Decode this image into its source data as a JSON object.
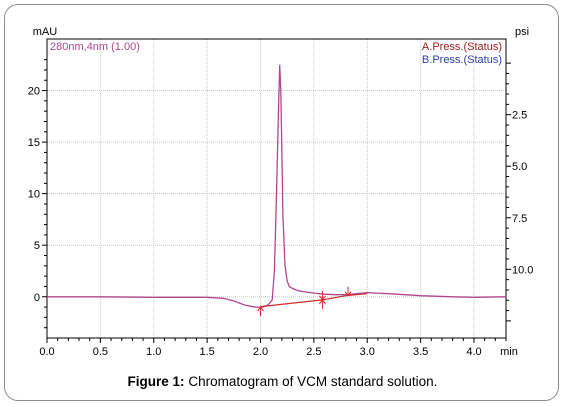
{
  "chart_data": {
    "type": "line",
    "left_unit": "mAU",
    "right_unit": "psi",
    "x_unit": "min",
    "xlim": [
      0.0,
      4.3
    ],
    "ylim": [
      -4,
      25
    ],
    "right_ylim": [
      13.33,
      -1.17
    ],
    "x_ticks": [
      "0.0",
      "0.5",
      "1.0",
      "1.5",
      "2.0",
      "2.5",
      "3.0",
      "3.5",
      "4.0"
    ],
    "y_ticks": [
      "0",
      "5",
      "10",
      "15",
      "20"
    ],
    "right_ticks": [
      "2.5",
      "5.0",
      "7.5",
      "10.0"
    ],
    "grid": true,
    "legend_placement": "top-right",
    "series": [
      {
        "name": "280nm,4nm (1.00)",
        "color": "#b0478f",
        "x": [
          0.0,
          0.5,
          1.0,
          1.5,
          1.65,
          1.75,
          1.85,
          1.95,
          2.02,
          2.07,
          2.11,
          2.13,
          2.15,
          2.17,
          2.18,
          2.19,
          2.2,
          2.21,
          2.23,
          2.25,
          2.27,
          2.3,
          2.35,
          2.4,
          2.5,
          2.6,
          2.7,
          2.8,
          2.9,
          3.0,
          3.2,
          3.5,
          3.8,
          4.0,
          4.3
        ],
        "y": [
          0.0,
          0.0,
          -0.05,
          -0.05,
          -0.15,
          -0.4,
          -0.8,
          -1.0,
          -1.0,
          -0.8,
          -0.3,
          2.5,
          10.0,
          18.5,
          22.5,
          20.0,
          14.5,
          8.0,
          3.0,
          1.5,
          1.0,
          0.8,
          0.6,
          0.5,
          0.35,
          0.25,
          0.2,
          0.2,
          0.3,
          0.4,
          0.3,
          0.1,
          0.0,
          -0.05,
          0.0
        ]
      },
      {
        "name": "baseline",
        "color": "#d42a2a",
        "x": [
          2.0,
          2.58,
          2.8,
          3.0
        ],
        "y": [
          -0.95,
          -0.3,
          0.1,
          0.3
        ]
      }
    ],
    "markers": [
      {
        "x": 2.0,
        "y": -1.0,
        "dir": "up",
        "label": ""
      },
      {
        "x": 2.58,
        "y": -0.3,
        "dir": "both",
        "label": ""
      },
      {
        "x": 2.82,
        "y": 0.1,
        "dir": "down",
        "label": ""
      }
    ],
    "legend": [
      {
        "label": "280nm,4nm (1.00)",
        "color": "#b0478f"
      },
      {
        "label": "A.Press.(Status)",
        "color": "#9a1a1a"
      },
      {
        "label": "B.Press.(Status)",
        "color": "#2a3fa8"
      }
    ]
  },
  "caption": {
    "prefix": "Figure 1:",
    "text": " Chromatogram of VCM standard solution."
  }
}
